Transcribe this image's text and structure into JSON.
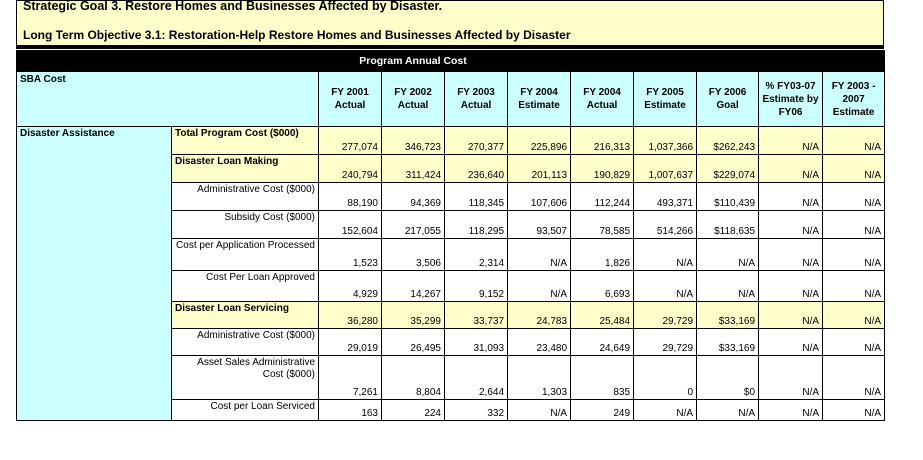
{
  "header": {
    "goal": "Strategic Goal 3.  Restore Homes and Businesses Affected by Disaster.",
    "objective": "Long Term Objective 3.1:  Restoration-Help Restore Homes and Businesses Affected by Disaster"
  },
  "table": {
    "program_label": "Program Annual Cost",
    "sba_cost_label": "SBA Cost",
    "group_label": "Disaster Assistance",
    "columns": [
      "FY 2001 Actual",
      "FY 2002 Actual",
      "FY 2003 Actual",
      "FY 2004 Estimate",
      "FY 2004 Actual",
      "FY 2005 Estimate",
      "FY 2006 Goal",
      "% FY03-07 Estimate by FY06",
      "FY 2003 - 2007 Estimate"
    ],
    "rows": [
      {
        "label": "Total Program Cost ($000)",
        "values": [
          "277,074",
          "346,723",
          "270,377",
          "225,896",
          "216,313",
          "1,037,366",
          "$262,243",
          "N/A",
          "N/A"
        ]
      },
      {
        "label": "Disaster Loan Making",
        "values": [
          "240,794",
          "311,424",
          "236,640",
          "201,113",
          "190,829",
          "1,007,637",
          "$229,074",
          "N/A",
          "N/A"
        ]
      },
      {
        "label": "Administrative Cost ($000)",
        "values": [
          "88,190",
          "94,369",
          "118,345",
          "107,606",
          "112,244",
          "493,371",
          "$110,439",
          "N/A",
          "N/A"
        ]
      },
      {
        "label": "Subsidy Cost ($000)",
        "values": [
          "152,604",
          "217,055",
          "118,295",
          "93,507",
          "78,585",
          "514,266",
          "$118,635",
          "N/A",
          "N/A"
        ]
      },
      {
        "label": "Cost per Application Processed",
        "values": [
          "1,523",
          "3,506",
          "2,314",
          "N/A",
          "1,826",
          "N/A",
          "N/A",
          "N/A",
          "N/A"
        ]
      },
      {
        "label": "Cost Per Loan Approved",
        "values": [
          "4,929",
          "14,267",
          "9,152",
          "N/A",
          "6,693",
          "N/A",
          "N/A",
          "N/A",
          "N/A"
        ]
      },
      {
        "label": "Disaster Loan Servicing",
        "values": [
          "36,280",
          "35,299",
          "33,737",
          "24,783",
          "25,484",
          "29,729",
          "$33,169",
          "N/A",
          "N/A"
        ]
      },
      {
        "label": "Administrative Cost ($000)",
        "values": [
          "29,019",
          "26,495",
          "31,093",
          "23,480",
          "24,649",
          "29,729",
          "$33,169",
          "N/A",
          "N/A"
        ]
      },
      {
        "label": "Asset Sales Administrative Cost ($000)",
        "values": [
          "7,261",
          "8,804",
          "2,644",
          "1,303",
          "835",
          "0",
          "$0",
          "N/A",
          "N/A"
        ]
      },
      {
        "label": "Cost per Loan Serviced",
        "values": [
          "163",
          "224",
          "332",
          "N/A",
          "249",
          "N/A",
          "N/A",
          "N/A",
          "N/A"
        ]
      }
    ]
  }
}
